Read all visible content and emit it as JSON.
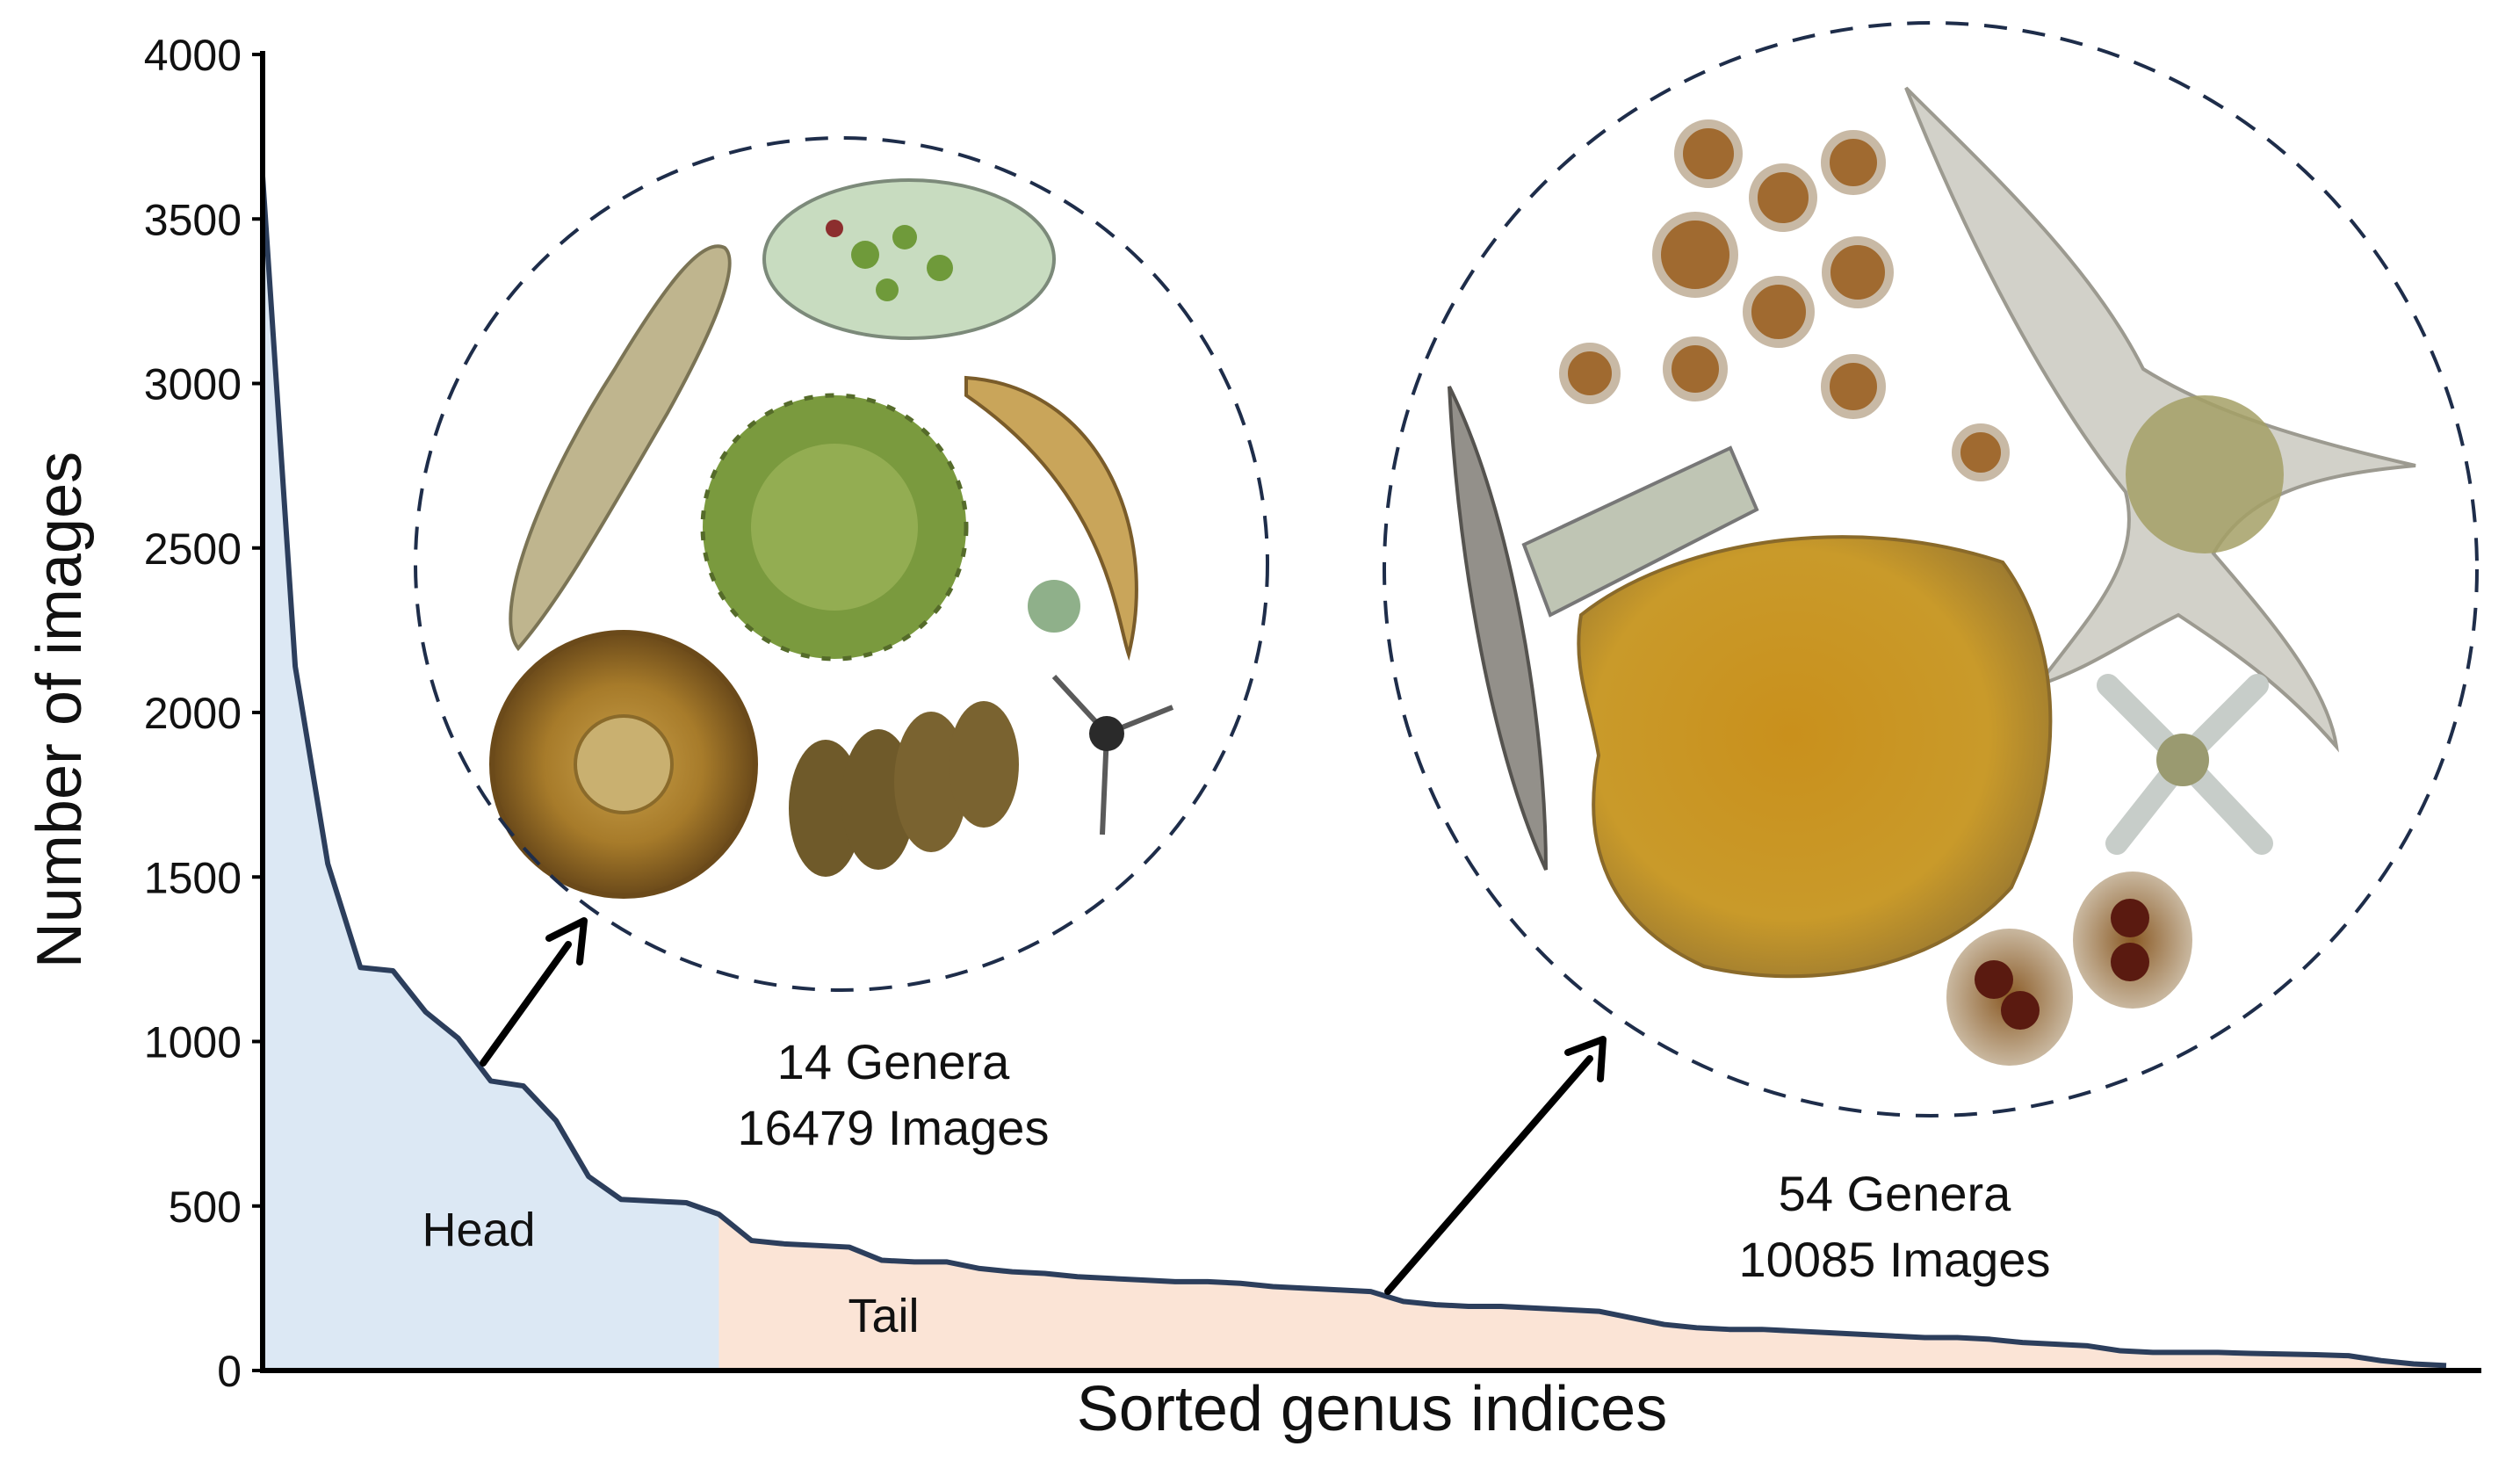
{
  "chart_data": {
    "type": "area",
    "xlabel": "Sorted genus indices",
    "ylabel": "Number of images",
    "ylim": [
      0,
      4000
    ],
    "yticks": [
      0,
      500,
      1000,
      1500,
      2000,
      2500,
      3000,
      3500,
      4000
    ],
    "grid": false,
    "x": [
      1,
      2,
      3,
      4,
      5,
      6,
      7,
      8,
      9,
      10,
      11,
      12,
      13,
      14,
      15,
      16,
      17,
      18,
      19,
      20,
      21,
      22,
      23,
      24,
      25,
      26,
      27,
      28,
      29,
      30,
      31,
      32,
      33,
      34,
      35,
      36,
      37,
      38,
      39,
      40,
      41,
      42,
      43,
      44,
      45,
      46,
      47,
      48,
      49,
      50,
      51,
      52,
      53,
      54,
      55,
      56,
      57,
      58,
      59,
      60,
      61,
      62,
      63,
      64,
      65,
      66,
      67,
      68
    ],
    "values": [
      3630,
      2140,
      1540,
      1225,
      1215,
      1090,
      1010,
      880,
      865,
      760,
      590,
      520,
      515,
      510,
      475,
      395,
      385,
      380,
      375,
      335,
      330,
      330,
      310,
      300,
      295,
      285,
      280,
      275,
      270,
      270,
      265,
      255,
      250,
      245,
      240,
      210,
      200,
      195,
      195,
      190,
      185,
      180,
      160,
      140,
      130,
      125,
      125,
      120,
      115,
      110,
      105,
      100,
      100,
      95,
      85,
      80,
      75,
      60,
      55,
      55,
      55,
      52,
      50,
      48,
      45,
      30,
      20,
      15
    ],
    "head": {
      "label": "Head",
      "genera": "14 Genera",
      "images": "16479 Images",
      "color": "#dce8f4"
    },
    "tail": {
      "label": "Tail",
      "genera": "54 Genera",
      "images": "10085 Images",
      "color": "#fbe4d6"
    },
    "line_color": "#2c3e5c",
    "circle_color": "#1e2d4a"
  }
}
